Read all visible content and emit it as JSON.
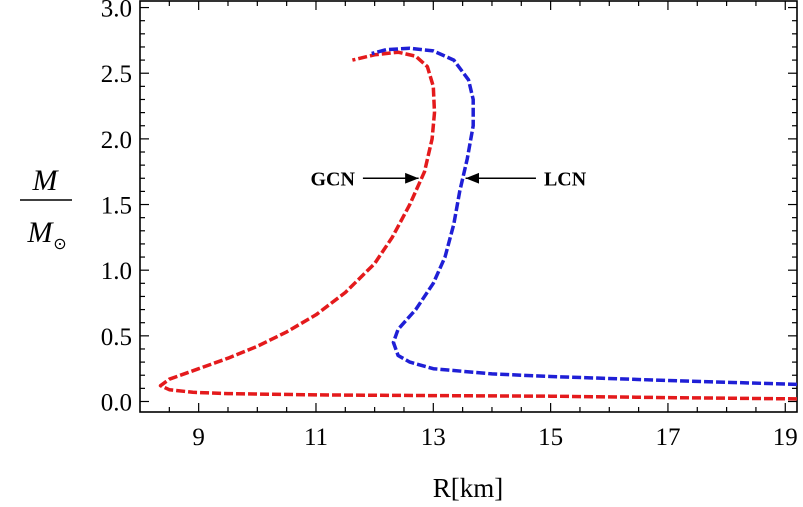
{
  "chart_data": {
    "type": "line",
    "title": "",
    "xlabel": "R[km]",
    "ylabel": {
      "numerator": "M",
      "denominator": "M",
      "subscript": "⊙"
    },
    "xlim": [
      8.0,
      19.2
    ],
    "ylim": [
      -0.08,
      3.05
    ],
    "x_ticks": [
      {
        "value": 9,
        "label": "9"
      },
      {
        "value": 11,
        "label": "11"
      },
      {
        "value": 13,
        "label": "13"
      },
      {
        "value": 15,
        "label": "15"
      },
      {
        "value": 17,
        "label": "17"
      },
      {
        "value": 19,
        "label": "19"
      }
    ],
    "y_ticks": [
      {
        "value": 0.0,
        "label": "0.0"
      },
      {
        "value": 0.5,
        "label": "0.5"
      },
      {
        "value": 1.0,
        "label": "1.0"
      },
      {
        "value": 1.5,
        "label": "1.5"
      },
      {
        "value": 2.0,
        "label": "2.0"
      },
      {
        "value": 2.5,
        "label": "2.5"
      },
      {
        "value": 3.0,
        "label": "3.0"
      }
    ],
    "grid": false,
    "series": [
      {
        "name": "GCN",
        "color": "#e41a1c",
        "style": "dashed",
        "points": [
          [
            19.2,
            0.02
          ],
          [
            17.0,
            0.03
          ],
          [
            15.0,
            0.04
          ],
          [
            13.0,
            0.045
          ],
          [
            11.0,
            0.05
          ],
          [
            9.5,
            0.06
          ],
          [
            8.9,
            0.07
          ],
          [
            8.5,
            0.09
          ],
          [
            8.35,
            0.12
          ],
          [
            8.5,
            0.17
          ],
          [
            9.0,
            0.25
          ],
          [
            9.5,
            0.33
          ],
          [
            10.0,
            0.42
          ],
          [
            10.5,
            0.53
          ],
          [
            11.0,
            0.66
          ],
          [
            11.5,
            0.83
          ],
          [
            12.0,
            1.05
          ],
          [
            12.3,
            1.25
          ],
          [
            12.6,
            1.5
          ],
          [
            12.85,
            1.75
          ],
          [
            12.98,
            2.0
          ],
          [
            13.02,
            2.2
          ],
          [
            13.0,
            2.4
          ],
          [
            12.9,
            2.55
          ],
          [
            12.7,
            2.63
          ],
          [
            12.4,
            2.66
          ],
          [
            12.0,
            2.64
          ],
          [
            11.62,
            2.6
          ]
        ]
      },
      {
        "name": "LCN",
        "color": "#1f1fd6",
        "style": "dashed",
        "points": [
          [
            19.2,
            0.13
          ],
          [
            17.0,
            0.16
          ],
          [
            15.0,
            0.19
          ],
          [
            14.0,
            0.21
          ],
          [
            13.0,
            0.25
          ],
          [
            12.6,
            0.3
          ],
          [
            12.4,
            0.35
          ],
          [
            12.32,
            0.45
          ],
          [
            12.4,
            0.55
          ],
          [
            12.7,
            0.7
          ],
          [
            13.0,
            0.9
          ],
          [
            13.2,
            1.1
          ],
          [
            13.35,
            1.35
          ],
          [
            13.45,
            1.6
          ],
          [
            13.58,
            1.85
          ],
          [
            13.68,
            2.1
          ],
          [
            13.68,
            2.3
          ],
          [
            13.6,
            2.45
          ],
          [
            13.35,
            2.6
          ],
          [
            13.0,
            2.67
          ],
          [
            12.6,
            2.69
          ],
          [
            12.2,
            2.68
          ],
          [
            11.95,
            2.65
          ]
        ]
      }
    ],
    "annotations": [
      {
        "text": "GCN",
        "arrow_from": [
          11.8,
          1.7
        ],
        "arrow_to": [
          12.75,
          1.7
        ]
      },
      {
        "text": "LCN",
        "arrow_from": [
          14.75,
          1.7
        ],
        "arrow_to": [
          13.55,
          1.7
        ]
      }
    ]
  }
}
